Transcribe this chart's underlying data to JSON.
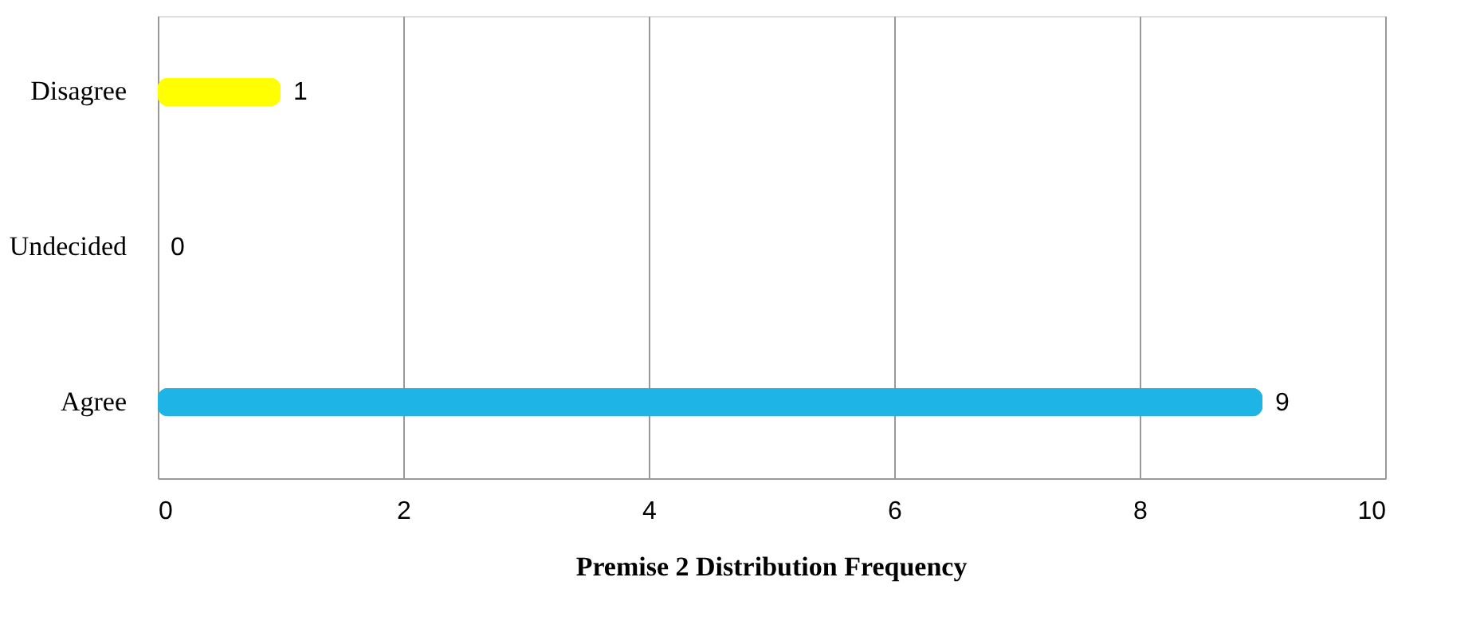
{
  "chart_data": {
    "type": "bar",
    "orientation": "horizontal",
    "title": "Premise 2 Distribution Frequency",
    "categories": [
      "Disagree",
      "Undecided",
      "Agree"
    ],
    "values": [
      1,
      0,
      9
    ],
    "colors": [
      "#ffff00",
      "#a0522d",
      "#1fb4e6"
    ],
    "xlim": [
      0,
      10
    ],
    "xticks": [
      0,
      2,
      4,
      6,
      8,
      10
    ],
    "grid": "x",
    "data_labels": true
  }
}
